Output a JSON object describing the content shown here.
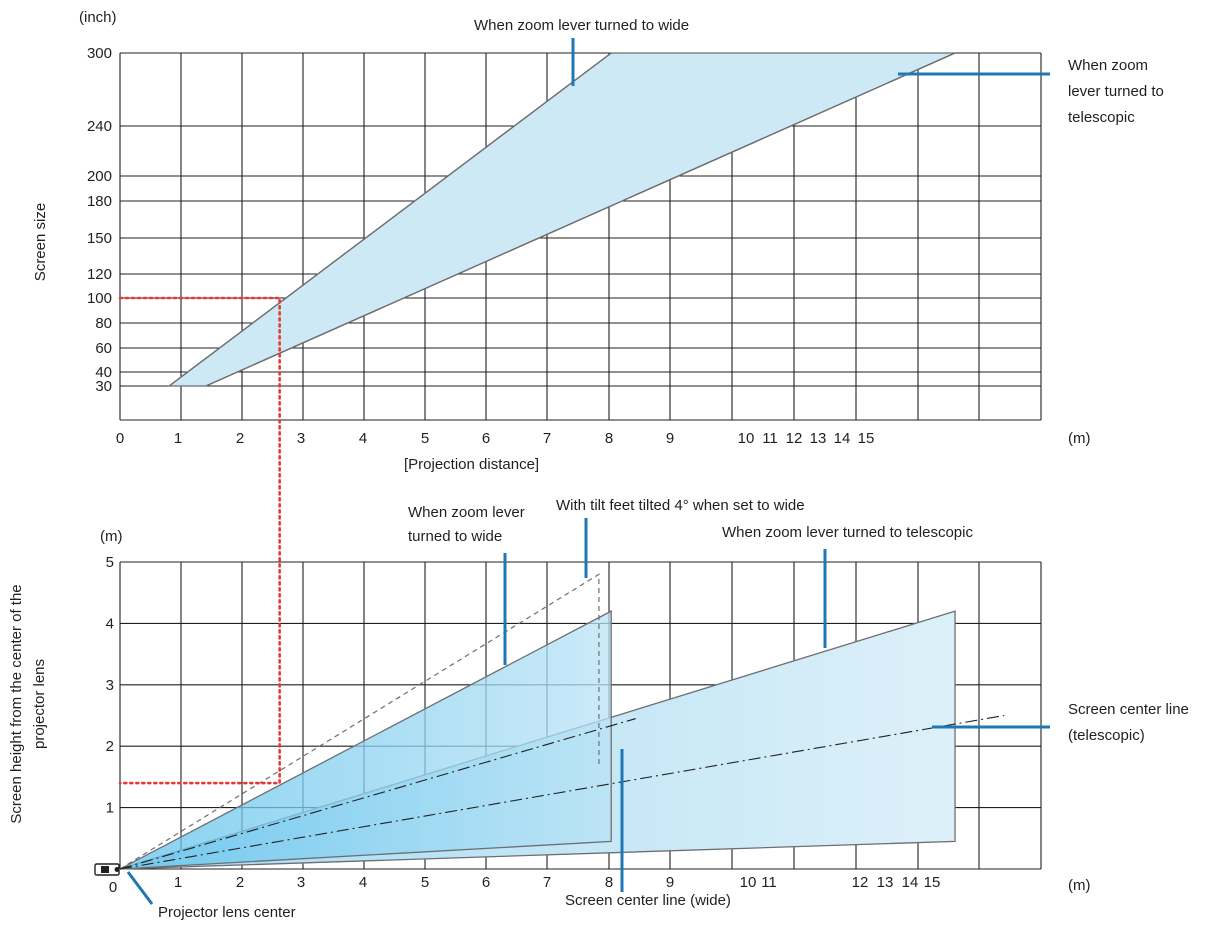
{
  "chart_data": [
    {
      "type": "area",
      "title": "",
      "xlabel": "[Projection distance]",
      "x_unit": "(m)",
      "ylabel": "Screen size",
      "y_unit": "(inch)",
      "x_ticks": [
        "0",
        "1",
        "2",
        "3",
        "4",
        "5",
        "6",
        "7",
        "8",
        "9",
        "10",
        "11",
        "12",
        "13",
        "14",
        "15"
      ],
      "y_ticks": [
        "30",
        "40",
        "60",
        "80",
        "100",
        "120",
        "150",
        "180",
        "200",
        "240",
        "300"
      ],
      "grid": true,
      "series": [
        {
          "name": "When zoom lever turned to wide",
          "x": [
            0.8,
            8.0
          ],
          "y": [
            30,
            300
          ]
        },
        {
          "name": "When zoom lever turned to telescopic",
          "x": [
            1.4,
            13.6
          ],
          "y": [
            30,
            300
          ]
        }
      ],
      "reference_line": {
        "x": 2.6,
        "y": 100
      },
      "annotations": [
        "When zoom lever turned to wide",
        "When zoom lever turned to telescopic"
      ]
    },
    {
      "type": "area",
      "title": "",
      "xlabel": "",
      "x_unit": "(m)",
      "ylabel": "Screen height from the center of the projector lens",
      "y_unit": "(m)",
      "x_ticks": [
        "0",
        "1",
        "2",
        "3",
        "4",
        "5",
        "6",
        "7",
        "8",
        "9",
        "10",
        "11",
        "12",
        "13",
        "14",
        "15"
      ],
      "y_ticks": [
        "1",
        "2",
        "3",
        "4",
        "5"
      ],
      "grid": true,
      "series": [
        {
          "name": "When zoom lever turned to wide",
          "x": [
            0,
            8.0,
            8.0
          ],
          "top": [
            0,
            4.2,
            4.2
          ],
          "bottom": [
            0,
            0.45,
            0.45
          ]
        },
        {
          "name": "When zoom lever turned to telescopic",
          "x": [
            0,
            13.6,
            13.6
          ],
          "top": [
            0,
            4.2,
            4.2
          ],
          "bottom": [
            0,
            0.45,
            0.45
          ]
        },
        {
          "name": "With tilt feet tilted 4° when set to wide",
          "x": [
            0,
            7.8,
            7.8
          ],
          "y": [
            0,
            4.8,
            1.7
          ]
        },
        {
          "name": "Screen center line (wide)",
          "x": [
            0,
            8.4
          ],
          "y": [
            0,
            2.45
          ]
        },
        {
          "name": "Screen center line (telescopic)",
          "x": [
            0,
            14.4
          ],
          "y": [
            0,
            2.5
          ]
        }
      ],
      "reference_line": {
        "x": 2.6,
        "y": 1.4
      },
      "annotations": [
        "When zoom lever turned to wide",
        "With tilt feet tilted 4° when set to wide",
        "When zoom lever turned to telescopic",
        "Screen center line (telescopic)",
        "Screen center line (wide)",
        "Projector lens center"
      ]
    }
  ],
  "labels": {
    "top_unit_y": "(inch)",
    "top_ylabel": "Screen size",
    "top_unit_x": "(m)",
    "top_xlabel": "[Projection distance]",
    "top_wide": "When zoom lever turned to wide",
    "top_tele_1": "When zoom",
    "top_tele_2": "lever turned to",
    "top_tele_3": "telescopic",
    "bot_unit_y": "(m)",
    "bot_unit_x": "(m)",
    "bot_ylabel_1": "Screen height from the center of the",
    "bot_ylabel_2": "projector lens",
    "bot_wide_1": "When zoom lever",
    "bot_wide_2": "turned to wide",
    "bot_tilt": "With tilt feet tilted 4° when set to wide",
    "bot_tele": "When zoom lever turned to telescopic",
    "center_tele_1": "Screen center line",
    "center_tele_2": "(telescopic)",
    "center_wide": "Screen center line (wide)",
    "lens_center": "Projector lens center"
  },
  "colors": {
    "grid": "#231f20",
    "area_fill": "#cde9f6",
    "area_overlap": "#a9dbf2",
    "area_edge": "#6d6e71",
    "callout": "#1f78b4",
    "reference": "#e53935"
  }
}
